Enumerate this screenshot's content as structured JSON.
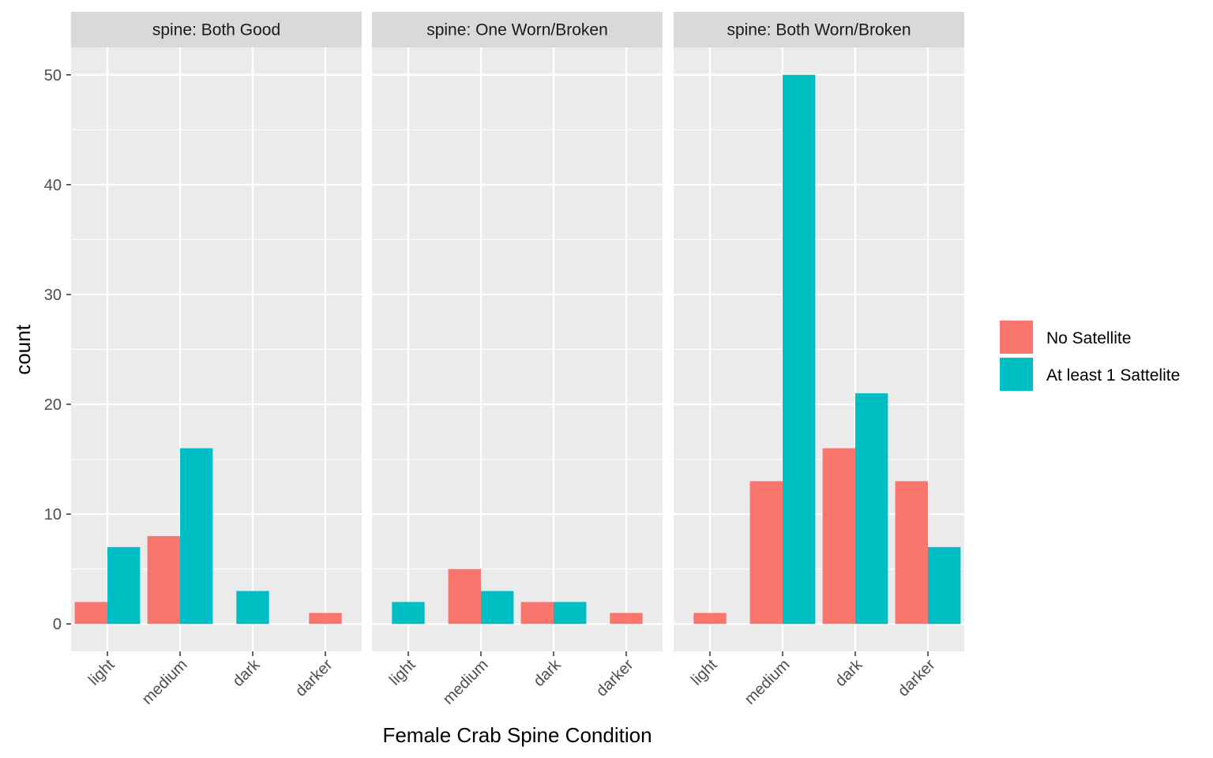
{
  "chart_data": {
    "type": "bar",
    "facet_prefix": "spine: ",
    "facets": [
      "Both Good",
      "One Worn/Broken",
      "Both Worn/Broken"
    ],
    "categories": [
      "light",
      "medium",
      "dark",
      "darker"
    ],
    "xlabel": "Female Crab Spine Condition",
    "ylabel": "count",
    "ylim": [
      -2.5,
      52.5
    ],
    "yticks": [
      0,
      10,
      20,
      30,
      40,
      50
    ],
    "grid": true,
    "legend_position": "right",
    "position": "dodge",
    "series": [
      {
        "name": "No Satellite",
        "color": "#F8766D",
        "values": [
          [
            2,
            8,
            0,
            1
          ],
          [
            0,
            5,
            2,
            1
          ],
          [
            1,
            13,
            16,
            13
          ]
        ]
      },
      {
        "name": "At least 1 Sattelite",
        "color": "#00BFC4",
        "values": [
          [
            7,
            16,
            3,
            0
          ],
          [
            2,
            3,
            2,
            0
          ],
          [
            0,
            50,
            21,
            7
          ]
        ]
      }
    ]
  }
}
